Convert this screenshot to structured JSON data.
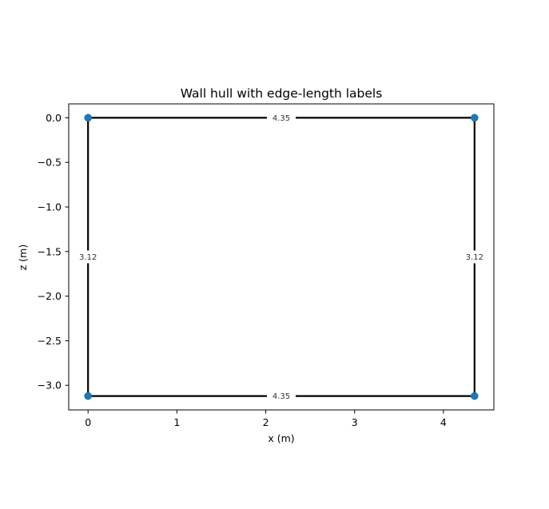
{
  "chart_data": {
    "type": "line",
    "title": "Wall hull with edge-length labels",
    "xlabel": "x (m)",
    "ylabel": "z (m)",
    "xlim": [
      -0.2175,
      4.5675
    ],
    "ylim": [
      -3.276,
      0.156
    ],
    "xticks": [
      {
        "value": 0,
        "label": "0"
      },
      {
        "value": 1,
        "label": "1"
      },
      {
        "value": 2,
        "label": "2"
      },
      {
        "value": 3,
        "label": "3"
      },
      {
        "value": 4,
        "label": "4"
      }
    ],
    "yticks": [
      {
        "value": 0.0,
        "label": "0.0"
      },
      {
        "value": -0.5,
        "label": "−0.5"
      },
      {
        "value": -1.0,
        "label": "−1.0"
      },
      {
        "value": -1.5,
        "label": "−1.5"
      },
      {
        "value": -2.0,
        "label": "−2.0"
      },
      {
        "value": -2.5,
        "label": "−2.5"
      },
      {
        "value": -3.0,
        "label": "−3.0"
      }
    ],
    "grid": false,
    "vertices": [
      {
        "x": 0.0,
        "z": 0.0
      },
      {
        "x": 4.35,
        "z": 0.0
      },
      {
        "x": 4.35,
        "z": -3.12
      },
      {
        "x": 0.0,
        "z": -3.12
      }
    ],
    "edges": [
      {
        "from": 0,
        "to": 1,
        "label": "4.35"
      },
      {
        "from": 1,
        "to": 2,
        "label": "3.12"
      },
      {
        "from": 2,
        "to": 3,
        "label": "4.35"
      },
      {
        "from": 3,
        "to": 0,
        "label": "3.12"
      }
    ],
    "colors": {
      "edge": "#000000",
      "vertex": "#1f77b4"
    }
  }
}
